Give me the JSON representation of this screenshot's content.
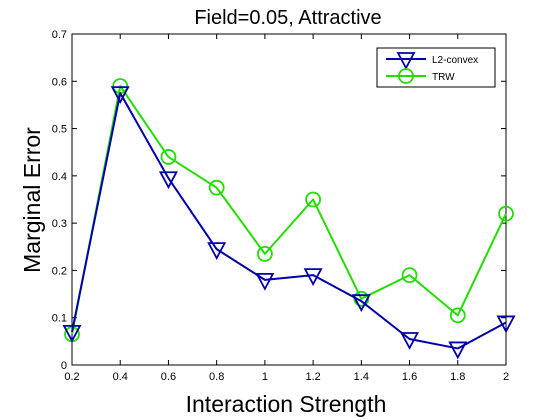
{
  "chart_data": {
    "type": "line",
    "title": "Field=0.05, Attractive",
    "xlabel": "Interaction Strength",
    "ylabel": "Marginal Error",
    "xlim": [
      0.2,
      2.0
    ],
    "ylim": [
      0,
      0.7
    ],
    "xticks": [
      "0.2",
      "0.4",
      "0.6",
      "0.8",
      "1",
      "1.2",
      "1.4",
      "1.6",
      "1.8",
      "2"
    ],
    "yticks": [
      "0",
      "0.1",
      "0.2",
      "0.3",
      "0.4",
      "0.5",
      "0.6",
      "0.7"
    ],
    "x": [
      0.2,
      0.4,
      0.6,
      0.8,
      1.0,
      1.2,
      1.4,
      1.6,
      1.8,
      2.0
    ],
    "series": [
      {
        "name": "L2-convex",
        "color": "#0000aa",
        "marker": "triangle-down",
        "values": [
          0.07,
          0.575,
          0.395,
          0.245,
          0.18,
          0.19,
          0.135,
          0.055,
          0.035,
          0.09
        ]
      },
      {
        "name": "TRW",
        "color": "#22dd00",
        "marker": "circle",
        "values": [
          0.065,
          0.59,
          0.44,
          0.375,
          0.235,
          0.35,
          0.14,
          0.19,
          0.105,
          0.32
        ]
      }
    ],
    "legend_position": "top-right",
    "grid": false
  }
}
